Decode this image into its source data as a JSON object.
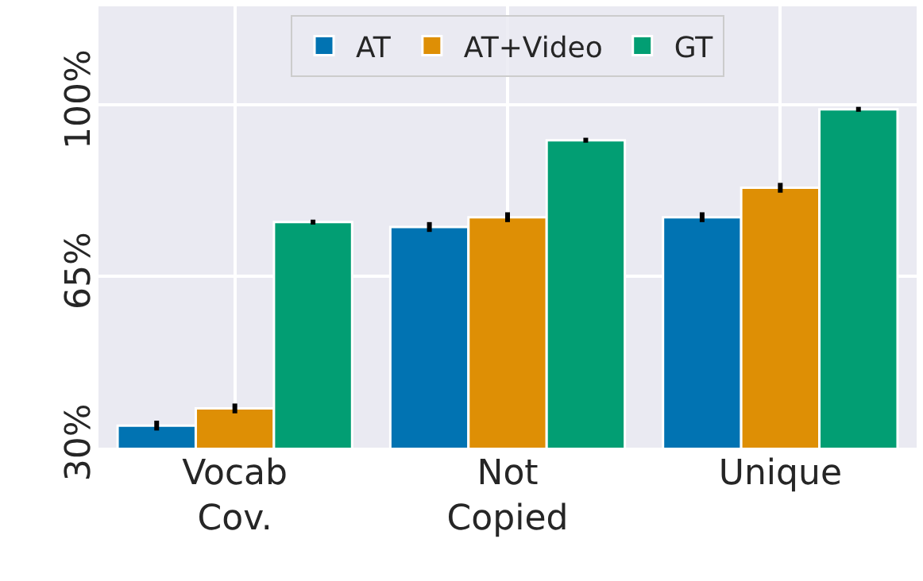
{
  "chart_data": {
    "type": "bar",
    "categories": [
      "Vocab\nCov.",
      "Not\nCopied",
      "Unique"
    ],
    "series": [
      {
        "name": "AT",
        "color": "#0173b2",
        "values": [
          34.5,
          75,
          77
        ],
        "errors": [
          1,
          1,
          1
        ]
      },
      {
        "name": "AT+Video",
        "color": "#de8f05",
        "values": [
          38,
          77,
          83
        ],
        "errors": [
          1,
          1,
          1
        ]
      },
      {
        "name": "GT",
        "color": "#029e73",
        "values": [
          76,
          92.7,
          99
        ],
        "errors": [
          0.5,
          0.5,
          0.5
        ]
      }
    ],
    "ylim": [
      30,
      120
    ],
    "yticks": [
      {
        "value": 30,
        "label": "30%"
      },
      {
        "value": 65,
        "label": "65%"
      },
      {
        "value": 100,
        "label": "100%"
      }
    ],
    "grid": true,
    "legend": "top"
  }
}
